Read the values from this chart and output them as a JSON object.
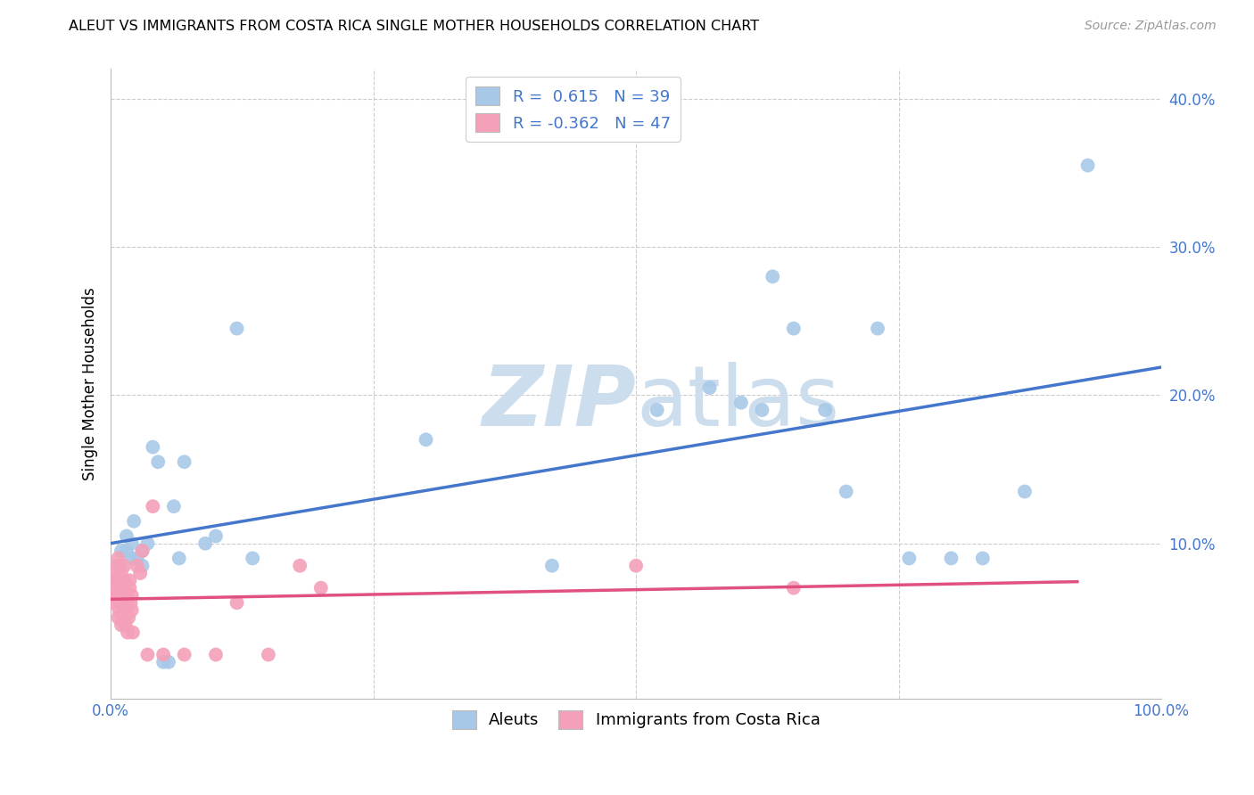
{
  "title": "ALEUT VS IMMIGRANTS FROM COSTA RICA SINGLE MOTHER HOUSEHOLDS CORRELATION CHART",
  "source": "Source: ZipAtlas.com",
  "ylabel": "Single Mother Households",
  "xlim": [
    0.0,
    1.0
  ],
  "ylim": [
    -0.005,
    0.42
  ],
  "yticks": [
    0.0,
    0.1,
    0.2,
    0.3,
    0.4
  ],
  "ytick_labels": [
    "",
    "10.0%",
    "20.0%",
    "30.0%",
    "40.0%"
  ],
  "aleut_R": 0.615,
  "aleut_N": 39,
  "costa_rica_R": -0.362,
  "costa_rica_N": 47,
  "aleut_color": "#a8c8e8",
  "aleut_line_color": "#4477cc",
  "costa_rica_color": "#f4a0b8",
  "costa_rica_line_color": "#e05080",
  "background_color": "#ffffff",
  "grid_color": "#cccccc",
  "watermark_color": "#ccdded",
  "aleut_x": [
    0.005,
    0.008,
    0.01,
    0.015,
    0.015,
    0.02,
    0.02,
    0.022,
    0.025,
    0.03,
    0.03,
    0.035,
    0.04,
    0.045,
    0.05,
    0.055,
    0.06,
    0.065,
    0.07,
    0.09,
    0.1,
    0.12,
    0.135,
    0.3,
    0.42,
    0.52,
    0.57,
    0.6,
    0.62,
    0.63,
    0.65,
    0.68,
    0.7,
    0.73,
    0.76,
    0.8,
    0.83,
    0.87,
    0.93
  ],
  "aleut_y": [
    0.075,
    0.085,
    0.095,
    0.105,
    0.095,
    0.1,
    0.09,
    0.115,
    0.09,
    0.095,
    0.085,
    0.1,
    0.165,
    0.155,
    0.02,
    0.02,
    0.125,
    0.09,
    0.155,
    0.1,
    0.105,
    0.245,
    0.09,
    0.17,
    0.085,
    0.19,
    0.205,
    0.195,
    0.19,
    0.28,
    0.245,
    0.19,
    0.135,
    0.245,
    0.09,
    0.09,
    0.09,
    0.135,
    0.355
  ],
  "costa_rica_x": [
    0.001,
    0.002,
    0.003,
    0.004,
    0.005,
    0.005,
    0.006,
    0.007,
    0.007,
    0.008,
    0.008,
    0.009,
    0.009,
    0.01,
    0.01,
    0.011,
    0.012,
    0.012,
    0.013,
    0.013,
    0.014,
    0.014,
    0.015,
    0.015,
    0.016,
    0.016,
    0.017,
    0.018,
    0.018,
    0.019,
    0.02,
    0.02,
    0.021,
    0.025,
    0.028,
    0.03,
    0.035,
    0.04,
    0.05,
    0.07,
    0.1,
    0.12,
    0.15,
    0.18,
    0.2,
    0.5,
    0.65
  ],
  "costa_rica_y": [
    0.06,
    0.075,
    0.07,
    0.065,
    0.08,
    0.065,
    0.085,
    0.09,
    0.05,
    0.055,
    0.06,
    0.065,
    0.075,
    0.08,
    0.045,
    0.05,
    0.055,
    0.07,
    0.075,
    0.085,
    0.045,
    0.05,
    0.055,
    0.06,
    0.065,
    0.04,
    0.05,
    0.07,
    0.075,
    0.06,
    0.055,
    0.065,
    0.04,
    0.085,
    0.08,
    0.095,
    0.025,
    0.125,
    0.025,
    0.025,
    0.025,
    0.06,
    0.025,
    0.085,
    0.07,
    0.085,
    0.07
  ]
}
